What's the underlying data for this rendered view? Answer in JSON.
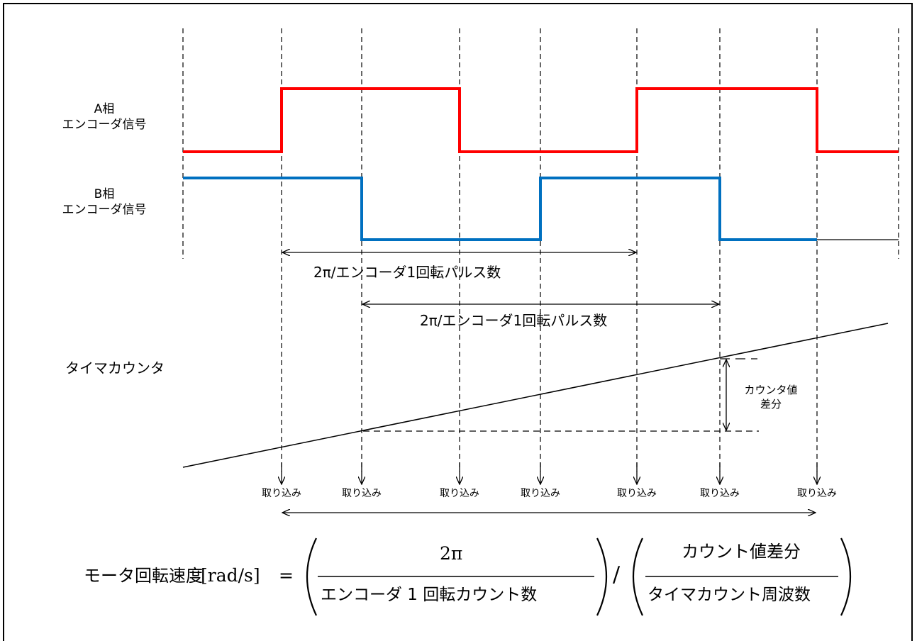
{
  "signals": {
    "phase_a": {
      "line1": "A相",
      "line2": "エンコーダ信号",
      "color": "#ff0000"
    },
    "phase_b": {
      "line1": "B相",
      "line2": "エンコーダ信号",
      "color": "#0070c0"
    },
    "timer_label": "タイマカウンタ"
  },
  "spans": {
    "a_period": "2π/エンコーダ1回転パルス数",
    "b_period": "2π/エンコーダ1回転パルス数"
  },
  "counter_diff": {
    "line1": "カウンタ値",
    "line2": "差分"
  },
  "capture_label": "取り込み",
  "captures": [
    "取り込み",
    "取り込み",
    "取り込み",
    "取り込み",
    "取り込み",
    "取り込み",
    "取り込み"
  ],
  "formula": {
    "lhs": "モータ回転速度",
    "unit": "[rad/s]",
    "equals": "=",
    "num1": "2π",
    "den1": "エンコーダ 1 回転カウント数",
    "divide": "/",
    "num2": "カウント値差分",
    "den2": "タイマカウント周波数"
  }
}
